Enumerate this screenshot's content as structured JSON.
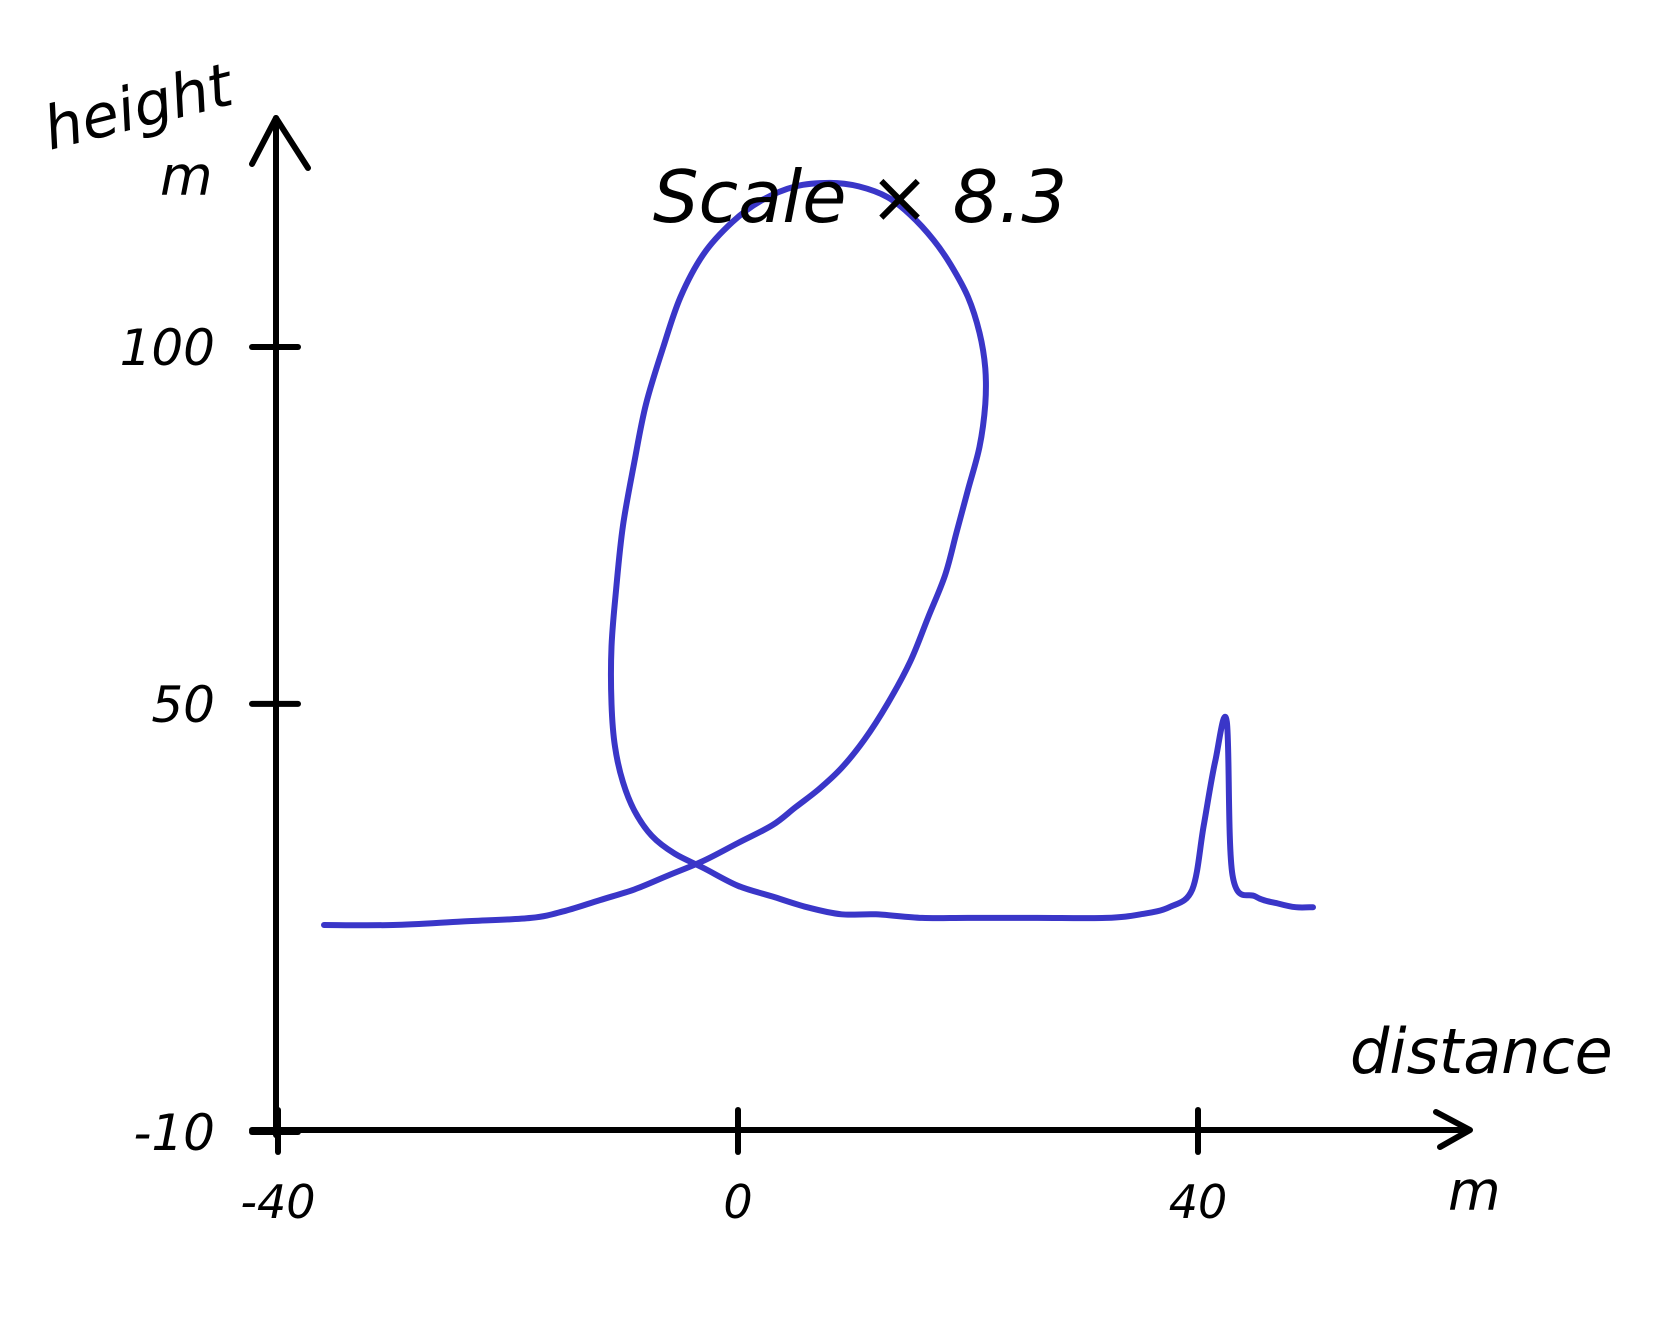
{
  "chart_data": {
    "type": "line",
    "title": "Scale × 8.3",
    "xlabel": "distance",
    "xunit": "m",
    "ylabel": "height",
    "yunit": "m",
    "xlim": [
      -40,
      50
    ],
    "ylim": [
      -10,
      120
    ],
    "x_ticks": [
      {
        "value": -40,
        "label": "-40"
      },
      {
        "value": 0,
        "label": "0"
      },
      {
        "value": 40,
        "label": "40"
      }
    ],
    "y_ticks": [
      {
        "value": -10,
        "label": "-10"
      },
      {
        "value": 50,
        "label": "50"
      },
      {
        "value": 100,
        "label": "100"
      }
    ],
    "grid": false,
    "legend": "none",
    "colors": {
      "curve": "#3a36c8",
      "axes": "#000000"
    },
    "series": [
      {
        "color": "#3a36c8",
        "x": [
          -36,
          -30,
          -24,
          -18,
          -15,
          -12,
          -9,
          -6,
          -3,
          0,
          3,
          5,
          7,
          9,
          11,
          13,
          15,
          16.5,
          18,
          19,
          20,
          21,
          21.5,
          21.5,
          21,
          20,
          18.5,
          17,
          15,
          13,
          10.5,
          8,
          5,
          2,
          -0.5,
          -3,
          -5,
          -6.5,
          -8,
          -9,
          -10,
          -10.6,
          -11,
          -11,
          -10.7,
          -10,
          -9,
          -7.5,
          -5.5,
          -3,
          0,
          3,
          6,
          9,
          12,
          16,
          20,
          26,
          32,
          35,
          37.5,
          39.5,
          40.5,
          41.5,
          42.5,
          43,
          45,
          47,
          48.5,
          50
        ],
        "y": [
          19,
          19,
          19.5,
          20,
          21,
          22.5,
          24,
          26,
          28,
          30.5,
          33,
          35.5,
          38,
          41,
          45,
          50,
          56,
          62,
          68,
          74,
          80,
          86,
          92,
          97,
          102,
          107,
          111.5,
          115,
          118.5,
          121,
          122.5,
          123,
          122.5,
          120.5,
          117.5,
          113,
          107,
          100,
          92,
          84,
          75,
          66,
          58,
          50,
          44,
          39,
          35,
          31.5,
          29,
          27,
          24.5,
          23,
          21.5,
          20.5,
          20.5,
          20,
          20,
          20,
          20,
          20.5,
          21.5,
          24,
          33,
          42,
          47.5,
          26,
          23,
          22,
          21.5,
          21.5
        ]
      }
    ]
  }
}
